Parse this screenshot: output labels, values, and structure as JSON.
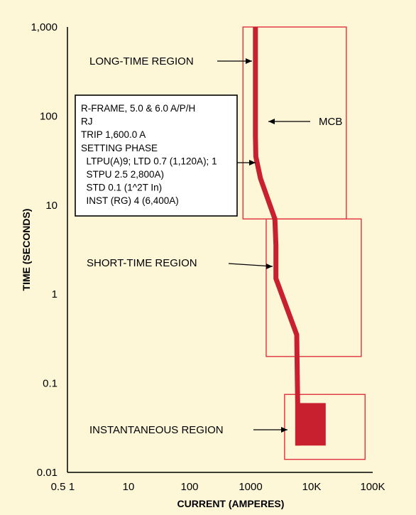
{
  "chart_data": {
    "type": "line",
    "xlabel": "CURRENT (AMPERES)",
    "ylabel": "TIME (SECONDS)",
    "x_scale": "log",
    "y_scale": "log",
    "xlim": [
      0.5,
      100000
    ],
    "ylim": [
      0.01,
      1000
    ],
    "x_tick_labels": [
      "0.5",
      "1",
      "10",
      "100",
      "1000",
      "10K",
      "100K"
    ],
    "x_tick_values": [
      0.5,
      1,
      10,
      100,
      1000,
      10000,
      100000
    ],
    "y_tick_labels": [
      "0.01",
      "0.1",
      "1",
      "10",
      "100",
      "1,000"
    ],
    "y_tick_values": [
      0.01,
      0.1,
      1,
      10,
      100,
      1000
    ],
    "grid": false,
    "curve_color": "#c8202f",
    "region_color": "#e0323c",
    "series": [
      {
        "name": "MCB",
        "points": [
          {
            "x": 1200,
            "y": 1000
          },
          {
            "x": 1200,
            "y": 60
          },
          {
            "x": 1220,
            "y": 35
          },
          {
            "x": 1450,
            "y": 20
          },
          {
            "x": 2500,
            "y": 7
          },
          {
            "x": 2600,
            "y": 3.5
          },
          {
            "x": 2600,
            "y": 1.5
          },
          {
            "x": 5700,
            "y": 0.35
          },
          {
            "x": 5900,
            "y": 0.06
          },
          {
            "x": 5900,
            "y": 0.02
          }
        ],
        "instantaneous_band": {
          "x": [
            5900,
            17000
          ],
          "y": [
            0.02,
            0.06
          ]
        }
      }
    ],
    "regions": [
      {
        "label": "LONG-TIME REGION",
        "x": [
          750,
          37000
        ],
        "y": [
          7,
          1000
        ]
      },
      {
        "label": "SHORT-TIME REGION",
        "x": [
          1800,
          65000
        ],
        "y": [
          0.2,
          7
        ]
      },
      {
        "label": "INSTANTANEOUS REGION",
        "x": [
          3600,
          75000
        ],
        "y": [
          0.014,
          0.075
        ]
      }
    ],
    "annotations": [
      {
        "text": "LONG-TIME REGION"
      },
      {
        "text": "SHORT-TIME REGION"
      },
      {
        "text": "INSTANTANEOUS REGION"
      },
      {
        "text": "MCB"
      }
    ],
    "settings_box": [
      "R-FRAME, 5.0 & 6.0 A/P/H",
      "RJ",
      "TRIP 1,600.0 A",
      "SETTING PHASE",
      "  LTPU(A)9; LTD 0.7 (1,120A); 1",
      "  STPU 2.5 2,800A)",
      "  STD 0.1 (1^2T In)",
      "  INST (RG) 4 (6,400A)"
    ]
  }
}
